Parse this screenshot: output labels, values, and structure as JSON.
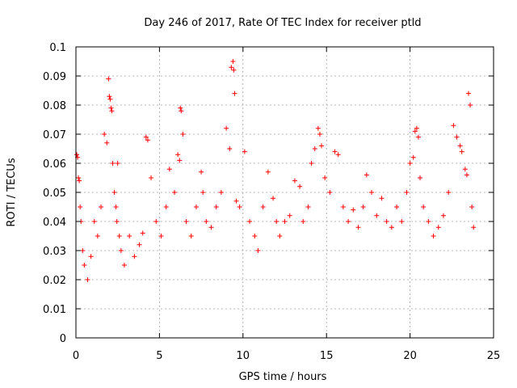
{
  "chart_data": {
    "type": "scatter",
    "title": "Day 246 of 2017, Rate Of TEC Index for receiver ptld",
    "xlabel": "GPS time / hours",
    "ylabel": "ROTI / TECUs",
    "xlim": [
      0,
      25
    ],
    "ylim": [
      0,
      0.1
    ],
    "x_ticks": [
      "0",
      "5",
      "10",
      "15",
      "20",
      "25"
    ],
    "y_ticks": [
      "0",
      "0.01",
      "0.02",
      "0.03",
      "0.04",
      "0.05",
      "0.06",
      "0.07",
      "0.08",
      "0.09",
      "0.1"
    ],
    "grid": true,
    "marker": "+",
    "color": "#ff0000",
    "series": [
      {
        "x": [
          0.05,
          0.1,
          0.15,
          0.2,
          0.25,
          0.3,
          0.4,
          0.5,
          0.7,
          0.9,
          1.1,
          1.3,
          1.5,
          1.7,
          1.85,
          1.95,
          2.0,
          2.05,
          2.1,
          2.15,
          2.2,
          2.3,
          2.4,
          2.45,
          2.5,
          2.6,
          2.7,
          2.9,
          3.2,
          3.5,
          3.8,
          4.0,
          4.2,
          4.3,
          4.5,
          4.8,
          5.1,
          5.4,
          5.6,
          5.9,
          6.1,
          6.2,
          6.25,
          6.3,
          6.4,
          6.6,
          6.9,
          7.2,
          7.5,
          7.6,
          7.8,
          8.1,
          8.4,
          8.7,
          9.0,
          9.2,
          9.3,
          9.4,
          9.45,
          9.5,
          9.6,
          9.8,
          10.1,
          10.4,
          10.7,
          10.9,
          11.2,
          11.5,
          11.8,
          12.0,
          12.2,
          12.5,
          12.8,
          13.1,
          13.4,
          13.6,
          13.9,
          14.1,
          14.3,
          14.5,
          14.6,
          14.7,
          14.9,
          15.2,
          15.5,
          15.7,
          16.0,
          16.3,
          16.6,
          16.9,
          17.2,
          17.4,
          17.7,
          18.0,
          18.3,
          18.6,
          18.9,
          19.2,
          19.5,
          19.8,
          20.0,
          20.2,
          20.3,
          20.4,
          20.5,
          20.6,
          20.8,
          21.1,
          21.4,
          21.7,
          22.0,
          22.3,
          22.6,
          22.8,
          23.0,
          23.1,
          23.3,
          23.4,
          23.5,
          23.6,
          23.7,
          23.8
        ],
        "y": [
          0.063,
          0.062,
          0.055,
          0.054,
          0.045,
          0.04,
          0.03,
          0.025,
          0.02,
          0.028,
          0.04,
          0.035,
          0.045,
          0.07,
          0.067,
          0.089,
          0.083,
          0.082,
          0.079,
          0.078,
          0.06,
          0.05,
          0.045,
          0.04,
          0.06,
          0.035,
          0.03,
          0.025,
          0.035,
          0.028,
          0.032,
          0.036,
          0.069,
          0.068,
          0.055,
          0.04,
          0.035,
          0.045,
          0.058,
          0.05,
          0.063,
          0.061,
          0.079,
          0.078,
          0.07,
          0.04,
          0.035,
          0.045,
          0.057,
          0.05,
          0.04,
          0.038,
          0.045,
          0.05,
          0.072,
          0.065,
          0.093,
          0.095,
          0.092,
          0.084,
          0.047,
          0.045,
          0.064,
          0.04,
          0.035,
          0.03,
          0.045,
          0.057,
          0.048,
          0.04,
          0.035,
          0.04,
          0.042,
          0.054,
          0.052,
          0.04,
          0.045,
          0.06,
          0.065,
          0.072,
          0.07,
          0.066,
          0.055,
          0.05,
          0.064,
          0.063,
          0.045,
          0.04,
          0.044,
          0.038,
          0.045,
          0.056,
          0.05,
          0.042,
          0.048,
          0.04,
          0.038,
          0.045,
          0.04,
          0.05,
          0.06,
          0.062,
          0.071,
          0.072,
          0.069,
          0.055,
          0.045,
          0.04,
          0.035,
          0.038,
          0.042,
          0.05,
          0.073,
          0.069,
          0.066,
          0.064,
          0.058,
          0.056,
          0.084,
          0.08,
          0.045,
          0.038
        ]
      }
    ]
  }
}
